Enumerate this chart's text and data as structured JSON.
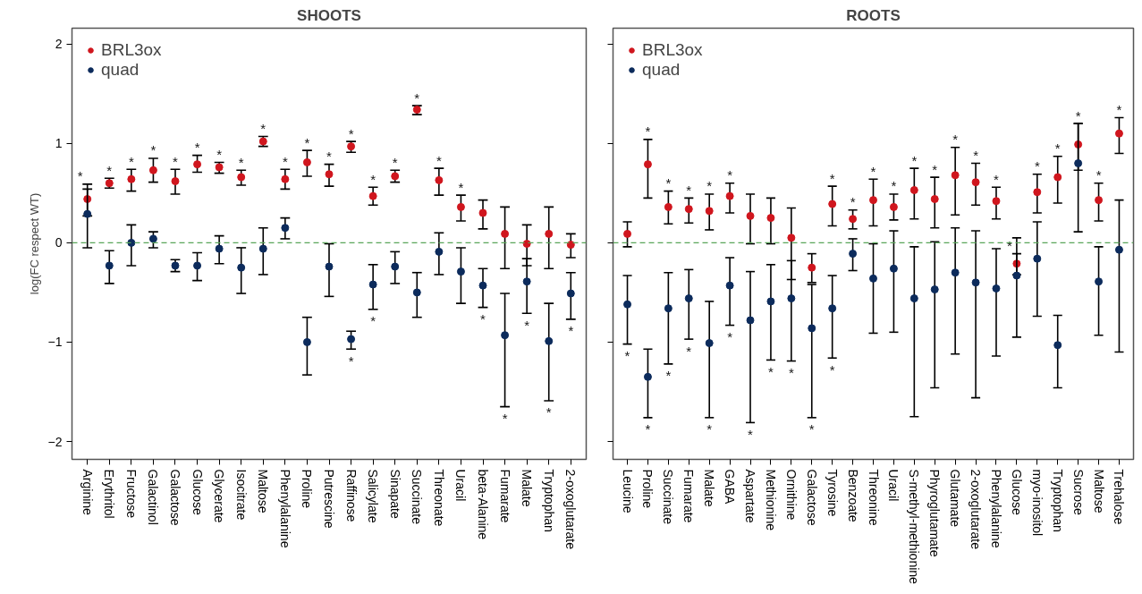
{
  "chart_data": [
    {
      "type": "scatter",
      "title": "SHOOTS",
      "ylabel": "log(FC respect WT)",
      "marker": "circle",
      "legend": "top left",
      "grid": false,
      "ylim": [
        -2.18,
        2.16
      ],
      "yticks": [
        -2,
        -1,
        0,
        1,
        2
      ],
      "ref_lines": [
        {
          "axis": "y",
          "value": 0,
          "color": "#5aa55a",
          "line_style": "dashed"
        }
      ],
      "categories": [
        "Arginine",
        "Erythritol",
        "Fructose",
        "Galactinol",
        "Galactose",
        "Glucose",
        "Glycerate",
        "Isocitrate",
        "Maltose",
        "Phenylalanine",
        "Proline",
        "Putrescine",
        "Raffinose",
        "Salicylate",
        "Sinapate",
        "Succinate",
        "Threonate",
        "Uracil",
        "beta-Alanine",
        "Fumarate",
        "Malate",
        "Tryptophan",
        "2-oxoglutarate"
      ],
      "series": [
        {
          "name": "BRL3ox",
          "color": "#d0161e",
          "values": [
            0.44,
            0.6,
            0.64,
            0.73,
            0.62,
            0.79,
            0.76,
            0.66,
            1.02,
            0.64,
            0.81,
            0.69,
            0.97,
            0.47,
            0.67,
            1.34,
            0.63,
            0.36,
            0.3,
            0.09,
            -0.01,
            0.09,
            -0.02
          ],
          "errors": [
            [
              0.27,
              0.59
            ],
            [
              0.55,
              0.65
            ],
            [
              0.52,
              0.74
            ],
            [
              0.61,
              0.85
            ],
            [
              0.49,
              0.74
            ],
            [
              0.71,
              0.88
            ],
            [
              0.7,
              0.81
            ],
            [
              0.58,
              0.73
            ],
            [
              0.97,
              1.07
            ],
            [
              0.54,
              0.74
            ],
            [
              0.67,
              0.93
            ],
            [
              0.57,
              0.79
            ],
            [
              0.91,
              1.02
            ],
            [
              0.38,
              0.56
            ],
            [
              0.61,
              0.73
            ],
            [
              1.29,
              1.38
            ],
            [
              0.48,
              0.75
            ],
            [
              0.22,
              0.48
            ],
            [
              0.14,
              0.43
            ],
            [
              -0.26,
              0.36
            ],
            [
              -0.23,
              0.18
            ],
            [
              -0.26,
              0.36
            ],
            [
              -0.15,
              0.09
            ]
          ]
        },
        {
          "name": "quad",
          "color": "#0c2b5c",
          "values": [
            0.29,
            -0.23,
            0.0,
            0.04,
            -0.23,
            -0.23,
            -0.06,
            -0.25,
            -0.06,
            0.15,
            -1.0,
            -0.24,
            -0.97,
            -0.42,
            -0.24,
            -0.5,
            -0.09,
            -0.29,
            -0.43,
            -0.93,
            -0.39,
            -0.99,
            -0.51
          ],
          "errors": [
            [
              -0.05,
              0.54
            ],
            [
              -0.41,
              -0.08
            ],
            [
              -0.23,
              0.18
            ],
            [
              -0.05,
              0.11
            ],
            [
              -0.29,
              -0.17
            ],
            [
              -0.38,
              -0.1
            ],
            [
              -0.21,
              0.07
            ],
            [
              -0.51,
              -0.05
            ],
            [
              -0.32,
              0.15
            ],
            [
              0.04,
              0.25
            ],
            [
              -1.33,
              -0.75
            ],
            [
              -0.54,
              -0.01
            ],
            [
              -1.07,
              -0.89
            ],
            [
              -0.67,
              -0.22
            ],
            [
              -0.41,
              -0.09
            ],
            [
              -0.75,
              -0.3
            ],
            [
              -0.32,
              0.1
            ],
            [
              -0.61,
              -0.05
            ],
            [
              -0.65,
              -0.26
            ],
            [
              -1.65,
              -0.51
            ],
            [
              -0.71,
              -0.16
            ],
            [
              -1.59,
              -0.61
            ],
            [
              -0.77,
              -0.3
            ]
          ]
        }
      ],
      "annotations": [
        {
          "text": "*",
          "x": "Arginine",
          "y": 0.59
        },
        {
          "text": "*",
          "x": "Erythritol",
          "y": 0.65
        },
        {
          "text": "*",
          "x": "Fructose",
          "y": 0.74
        },
        {
          "text": "*",
          "x": "Galactinol",
          "y": 0.85
        },
        {
          "text": "*",
          "x": "Galactose",
          "y": 0.74
        },
        {
          "text": "*",
          "x": "Glucose",
          "y": 0.88
        },
        {
          "text": "*",
          "x": "Glycerate",
          "y": 0.81
        },
        {
          "text": "*",
          "x": "Isocitrate",
          "y": 0.73
        },
        {
          "text": "*",
          "x": "Maltose",
          "y": 1.07
        },
        {
          "text": "*",
          "x": "Phenylalanine",
          "y": 0.74
        },
        {
          "text": "*",
          "x": "Proline",
          "y": 0.93
        },
        {
          "text": "*",
          "x": "Putrescine",
          "y": 0.79
        },
        {
          "text": "*",
          "x": "Raffinose",
          "y": 1.02
        },
        {
          "text": "*",
          "x": "Salicylate",
          "y": 0.56
        },
        {
          "text": "*",
          "x": "Sinapate",
          "y": 0.73
        },
        {
          "text": "*",
          "x": "Succinate",
          "y": 1.38
        },
        {
          "text": "*",
          "x": "Threonate",
          "y": 0.75
        },
        {
          "text": "*",
          "x": "Uracil",
          "y": 0.48
        },
        {
          "text": "*",
          "x": "Raffinose",
          "y": -1.07
        },
        {
          "text": "*",
          "x": "Salicylate",
          "y": -0.67
        },
        {
          "text": "*",
          "x": "beta-Alanine",
          "y": -0.65
        },
        {
          "text": "*",
          "x": "Fumarate",
          "y": -1.65
        },
        {
          "text": "*",
          "x": "Malate",
          "y": -0.71
        },
        {
          "text": "*",
          "x": "Tryptophan",
          "y": -1.59
        },
        {
          "text": "*",
          "x": "2-oxoglutarate",
          "y": -0.77
        }
      ]
    },
    {
      "type": "scatter",
      "title": "ROOTS",
      "marker": "circle",
      "legend": "top left",
      "grid": false,
      "tick_labels": "x",
      "ylim": [
        -2.18,
        2.16
      ],
      "yticks": [
        -2,
        -1,
        0,
        1,
        2
      ],
      "ref_lines": [
        {
          "axis": "y",
          "value": 0,
          "color": "#5aa55a",
          "line_style": "dashed"
        }
      ],
      "categories": [
        "Leucine",
        "Proline",
        "Succinate",
        "Fumarate",
        "Malate",
        "GABA",
        "Aspartate",
        "Methionine",
        "Ornithine",
        "Galactose",
        "Tyrosine",
        "Benzoate",
        "Threonine",
        "Uracil",
        "S-methyl-methionine",
        "Phyroglutamate",
        "Glutamate",
        "2-oxoglutarate",
        "Phenylalanine",
        "Glucose",
        "myo-inositol",
        "Tryptophan",
        "Sucrose",
        "Maltose",
        "Trehalose"
      ],
      "series": [
        {
          "name": "BRL3ox",
          "color": "#d0161e",
          "values": [
            0.09,
            0.79,
            0.36,
            0.34,
            0.32,
            0.47,
            0.27,
            0.25,
            0.05,
            -0.25,
            0.39,
            0.24,
            0.43,
            0.36,
            0.53,
            0.44,
            0.68,
            0.61,
            0.42,
            -0.21,
            0.51,
            0.66,
            0.99,
            0.43,
            1.1
          ],
          "errors": [
            [
              -0.04,
              0.21
            ],
            [
              0.45,
              1.04
            ],
            [
              0.19,
              0.52
            ],
            [
              0.2,
              0.45
            ],
            [
              0.13,
              0.49
            ],
            [
              0.3,
              0.6
            ],
            [
              -0.01,
              0.49
            ],
            [
              -0.01,
              0.45
            ],
            [
              -0.37,
              0.35
            ],
            [
              -0.4,
              -0.11
            ],
            [
              0.17,
              0.57
            ],
            [
              0.14,
              0.33
            ],
            [
              0.17,
              0.64
            ],
            [
              0.23,
              0.49
            ],
            [
              0.24,
              0.75
            ],
            [
              0.15,
              0.66
            ],
            [
              0.28,
              0.96
            ],
            [
              0.38,
              0.8
            ],
            [
              0.24,
              0.56
            ],
            [
              -0.32,
              -0.11
            ],
            [
              0.3,
              0.69
            ],
            [
              0.4,
              0.87
            ],
            [
              0.73,
              1.2
            ],
            [
              0.22,
              0.6
            ],
            [
              0.9,
              1.26
            ]
          ]
        },
        {
          "name": "quad",
          "color": "#0c2b5c",
          "values": [
            -0.62,
            -1.35,
            -0.66,
            -0.56,
            -1.01,
            -0.43,
            -0.78,
            -0.59,
            -0.56,
            -0.86,
            -0.66,
            -0.11,
            -0.36,
            -0.26,
            -0.56,
            -0.47,
            -0.3,
            -0.4,
            -0.46,
            -0.33,
            -0.16,
            -1.03,
            0.8,
            -0.39,
            -0.07
          ],
          "errors": [
            [
              -1.02,
              -0.33
            ],
            [
              -1.76,
              -1.07
            ],
            [
              -1.22,
              -0.3
            ],
            [
              -0.97,
              -0.27
            ],
            [
              -1.76,
              -0.59
            ],
            [
              -0.83,
              -0.15
            ],
            [
              -1.81,
              -0.29
            ],
            [
              -1.18,
              -0.22
            ],
            [
              -1.19,
              -0.18
            ],
            [
              -1.76,
              -0.42
            ],
            [
              -1.16,
              -0.33
            ],
            [
              -0.28,
              0.04
            ],
            [
              -0.91,
              -0.01
            ],
            [
              -0.9,
              0.12
            ],
            [
              -1.75,
              -0.04
            ],
            [
              -1.46,
              0.01
            ],
            [
              -1.12,
              0.15
            ],
            [
              -1.56,
              0.12
            ],
            [
              -1.14,
              -0.06
            ],
            [
              -0.95,
              0.05
            ],
            [
              -0.74,
              0.21
            ],
            [
              -1.46,
              -0.73
            ],
            [
              0.11,
              1.2
            ],
            [
              -0.93,
              -0.04
            ],
            [
              -1.1,
              0.43
            ]
          ]
        }
      ],
      "annotations": [
        {
          "text": "*",
          "x": "Proline",
          "y": 1.04
        },
        {
          "text": "*",
          "x": "Succinate",
          "y": 0.52
        },
        {
          "text": "*",
          "x": "Fumarate",
          "y": 0.45
        },
        {
          "text": "*",
          "x": "Malate",
          "y": 0.49
        },
        {
          "text": "*",
          "x": "GABA",
          "y": 0.6
        },
        {
          "text": "*",
          "x": "Tyrosine",
          "y": 0.57
        },
        {
          "text": "*",
          "x": "Benzoate",
          "y": 0.33
        },
        {
          "text": "*",
          "x": "Threonine",
          "y": 0.64
        },
        {
          "text": "*",
          "x": "Uracil",
          "y": 0.49
        },
        {
          "text": "*",
          "x": "S-methyl-methionine",
          "y": 0.75
        },
        {
          "text": "*",
          "x": "Phyroglutamate",
          "y": 0.66
        },
        {
          "text": "*",
          "x": "Glutamate",
          "y": 0.96
        },
        {
          "text": "*",
          "x": "2-oxoglutarate",
          "y": 0.8
        },
        {
          "text": "*",
          "x": "Phenylalanine",
          "y": 0.56
        },
        {
          "text": "*",
          "x": "Glucose",
          "y": -0.11
        },
        {
          "text": "*",
          "x": "myo-inositol",
          "y": 0.69
        },
        {
          "text": "*",
          "x": "Tryptophan",
          "y": 0.87
        },
        {
          "text": "*",
          "x": "Sucrose",
          "y": 1.2
        },
        {
          "text": "*",
          "x": "Maltose",
          "y": 0.6
        },
        {
          "text": "*",
          "x": "Trehalose",
          "y": 1.26
        },
        {
          "text": "*",
          "x": "Leucine",
          "y": -1.02
        },
        {
          "text": "*",
          "x": "Proline",
          "y": -1.76
        },
        {
          "text": "*",
          "x": "Succinate",
          "y": -1.22
        },
        {
          "text": "*",
          "x": "Fumarate",
          "y": -0.97
        },
        {
          "text": "*",
          "x": "Malate",
          "y": -1.76
        },
        {
          "text": "*",
          "x": "GABA",
          "y": -0.83
        },
        {
          "text": "*",
          "x": "Aspartate",
          "y": -1.81
        },
        {
          "text": "*",
          "x": "Methionine",
          "y": -1.18
        },
        {
          "text": "*",
          "x": "Ornithine",
          "y": -1.19
        },
        {
          "text": "*",
          "x": "Galactose",
          "y": -1.76
        },
        {
          "text": "*",
          "x": "Tyrosine",
          "y": -1.16
        }
      ]
    }
  ]
}
